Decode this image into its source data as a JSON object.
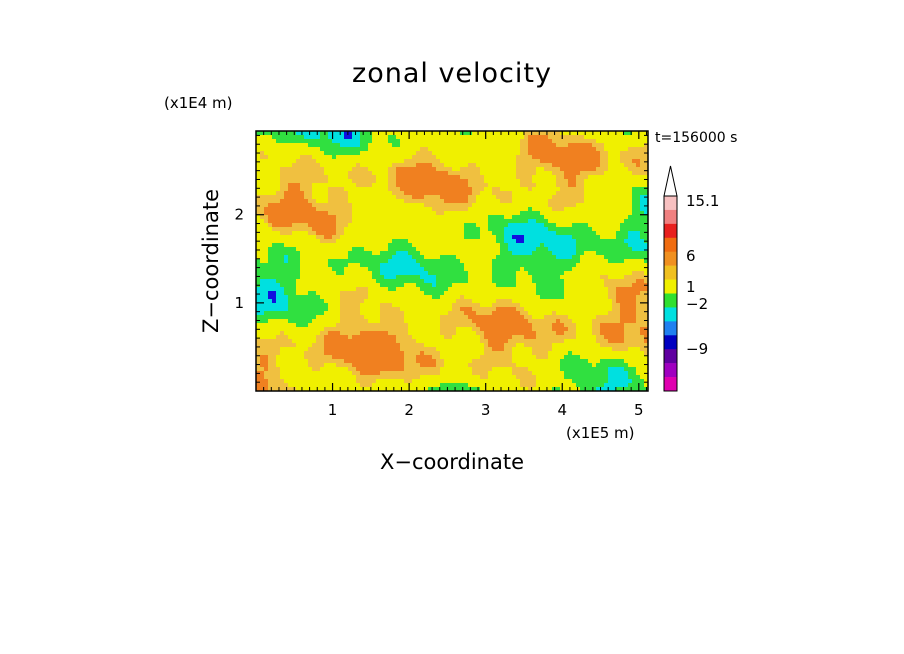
{
  "chart_data": {
    "type": "heatmap",
    "title": "zonal velocity",
    "xlabel": "X−coordinate",
    "ylabel": "Z−coordinate",
    "x_multiplier": "(x1E5 m)",
    "y_multiplier": "(x1E4 m)",
    "time_label": "t=156000 s",
    "xlim": [
      0,
      5.12
    ],
    "ylim": [
      0,
      2.95
    ],
    "x_ticks": [
      "1",
      "2",
      "3",
      "4",
      "5"
    ],
    "y_ticks": [
      "1",
      "2"
    ],
    "colorbar": {
      "labels": [
        "15.1",
        "6",
        "1",
        "−2",
        "−9"
      ],
      "colors": [
        "#f7c0c0",
        "#f08080",
        "#e8201e",
        "#f06c10",
        "#f09020",
        "#f0c020",
        "#f0f000",
        "#30e030",
        "#00e0e0",
        "#2080f0",
        "#0000c0",
        "#6000a0",
        "#a000c0",
        "#e000b0"
      ]
    },
    "palette": {
      "strong_pos": "#f08020",
      "pos": "#f0c040",
      "weak_pos": "#f0f000",
      "weak_neg": "#30e040",
      "neg": "#00e0e0",
      "strong_neg": "#1010e0"
    }
  }
}
